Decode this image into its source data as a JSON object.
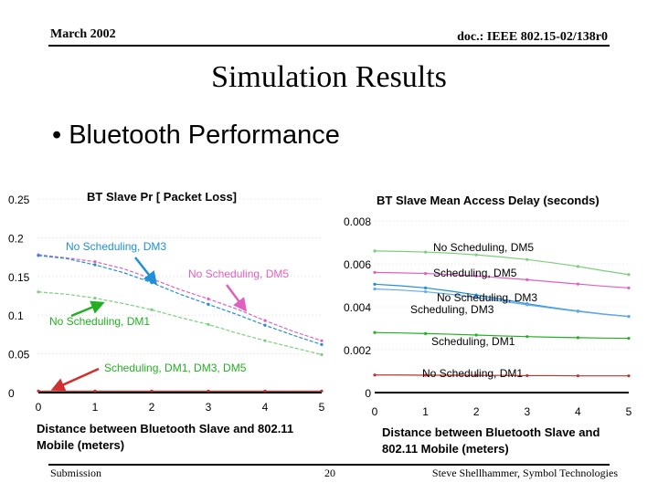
{
  "header": {
    "date": "March 2002",
    "doc": "doc.: IEEE 802.15-02/138r0"
  },
  "slide": {
    "title": "Simulation Results",
    "bullet": "• Bluetooth Performance"
  },
  "footer": {
    "left": "Submission",
    "page": "20",
    "right": "Steve Shellhammer, Symbol Technologies"
  },
  "colors": {
    "blue": "#1f8fd8",
    "pink": "#e060c0",
    "green": "#22b022",
    "lightgreen": "#7ccf7c",
    "red": "#c03030",
    "grid": "#cccccc",
    "lightblue": "#66a8ee"
  },
  "chart_data": [
    {
      "type": "line",
      "title": "BT Slave Pr [ Packet Loss]",
      "xlabel": "Distance between Bluetooth Slave and 802.11 Mobile  (meters)",
      "ylabel": "",
      "xlim": [
        0,
        5
      ],
      "ylim": [
        0,
        0.25
      ],
      "x": [
        0,
        0.5,
        1,
        1.5,
        2,
        2.5,
        3,
        3.5,
        4,
        4.5,
        5
      ],
      "xticks": [
        "0",
        "1",
        "2",
        "3",
        "4",
        "5"
      ],
      "yticks": [
        "0",
        "0.05",
        "0.1",
        "0.15",
        "0.2",
        "0.25"
      ],
      "series": [
        {
          "name": "No Scheduling, DM5",
          "color": "pink",
          "values": [
            0.178,
            0.174,
            0.169,
            0.16,
            0.147,
            0.133,
            0.121,
            0.108,
            0.093,
            0.079,
            0.067
          ]
        },
        {
          "name": "No Scheduling, DM3",
          "color": "blue",
          "values": [
            0.177,
            0.173,
            0.165,
            0.155,
            0.142,
            0.127,
            0.114,
            0.101,
            0.087,
            0.074,
            0.062
          ]
        },
        {
          "name": "No Scheduling, DM1",
          "color": "lightgreen",
          "values": [
            0.13,
            0.127,
            0.122,
            0.115,
            0.107,
            0.097,
            0.088,
            0.077,
            0.067,
            0.058,
            0.049
          ]
        },
        {
          "name": "Scheduling, DM1, DM3, DM5",
          "color": "red",
          "values": [
            0.002,
            0.002,
            0.002,
            0.002,
            0.002,
            0.002,
            0.002,
            0.002,
            0.002,
            0.002,
            0.002
          ]
        }
      ],
      "annotations": [
        {
          "text": "No Scheduling, DM3",
          "color": "blue",
          "series": "No Scheduling, DM3",
          "at_x": 2.1
        },
        {
          "text": "No Scheduling, DM5",
          "color": "pink",
          "series": "No Scheduling, DM5",
          "at_x": 3.65
        },
        {
          "text": "No Scheduling, DM1",
          "color": "green",
          "series": "No Scheduling, DM1",
          "at_x": 0.55
        },
        {
          "text": "Scheduling, DM1, DM3, DM5",
          "color": "green",
          "series": "Scheduling, DM1, DM3, DM5",
          "at_x": 0.2
        }
      ]
    },
    {
      "type": "line",
      "title": "BT Slave  Mean Access Delay (seconds)",
      "xlabel": "Distance between Bluetooth Slave and 802.11 Mobile (meters)",
      "ylabel": "",
      "xlim": [
        0,
        5
      ],
      "ylim": [
        0,
        0.008
      ],
      "x": [
        0,
        0.5,
        1,
        1.5,
        2,
        2.5,
        3,
        3.5,
        4,
        4.5,
        5
      ],
      "xticks": [
        "0",
        "1",
        "2",
        "3",
        "4",
        "5"
      ],
      "yticks": [
        "0",
        "0.002",
        "0.004",
        "0.006",
        "0.008"
      ],
      "series": [
        {
          "name": "No Scheduling, DM5",
          "color": "lightgreen",
          "values": [
            0.0066,
            0.00658,
            0.00655,
            0.0065,
            0.00642,
            0.00632,
            0.0062,
            0.00605,
            0.00588,
            0.00568,
            0.0055
          ]
        },
        {
          "name": "Scheduling, DM5",
          "color": "pink",
          "values": [
            0.0056,
            0.00558,
            0.00555,
            0.0055,
            0.00543,
            0.00535,
            0.00526,
            0.00516,
            0.00506,
            0.00496,
            0.00488
          ]
        },
        {
          "name": "No Scheduling, DM3",
          "color": "blue",
          "values": [
            0.00505,
            0.00498,
            0.00488,
            0.00473,
            0.00455,
            0.00435,
            0.00414,
            0.00396,
            0.0038,
            0.00366,
            0.00355
          ]
        },
        {
          "name": "Scheduling, DM3",
          "color": "lightblue",
          "values": [
            0.00483,
            0.00478,
            0.0047,
            0.00458,
            0.00443,
            0.00426,
            0.00409,
            0.00393,
            0.00378,
            0.00365,
            0.00354
          ]
        },
        {
          "name": "Scheduling, DM1",
          "color": "green",
          "values": [
            0.0028,
            0.00278,
            0.00275,
            0.00272,
            0.00268,
            0.00264,
            0.00261,
            0.00258,
            0.00256,
            0.00254,
            0.00253
          ]
        },
        {
          "name": "No Scheduling, DM1",
          "color": "red",
          "values": [
            0.00082,
            0.00082,
            0.00081,
            0.00081,
            0.0008,
            0.0008,
            0.00079,
            0.00079,
            0.00078,
            0.00078,
            0.00078
          ]
        }
      ],
      "annotations": [
        {
          "text": "No Scheduling, DM5",
          "color": "black",
          "series": "No Scheduling, DM5"
        },
        {
          "text": "Scheduling, DM5",
          "color": "black",
          "series": "Scheduling, DM5"
        },
        {
          "text": "No Scheduling, DM3",
          "color": "black",
          "series": "No Scheduling, DM3"
        },
        {
          "text": "Scheduling, DM3",
          "color": "black",
          "series": "Scheduling, DM3"
        },
        {
          "text": "Scheduling, DM1",
          "color": "black",
          "series": "Scheduling, DM1"
        },
        {
          "text": "No Scheduling, DM1",
          "color": "black",
          "series": "No Scheduling, DM1"
        }
      ]
    }
  ]
}
